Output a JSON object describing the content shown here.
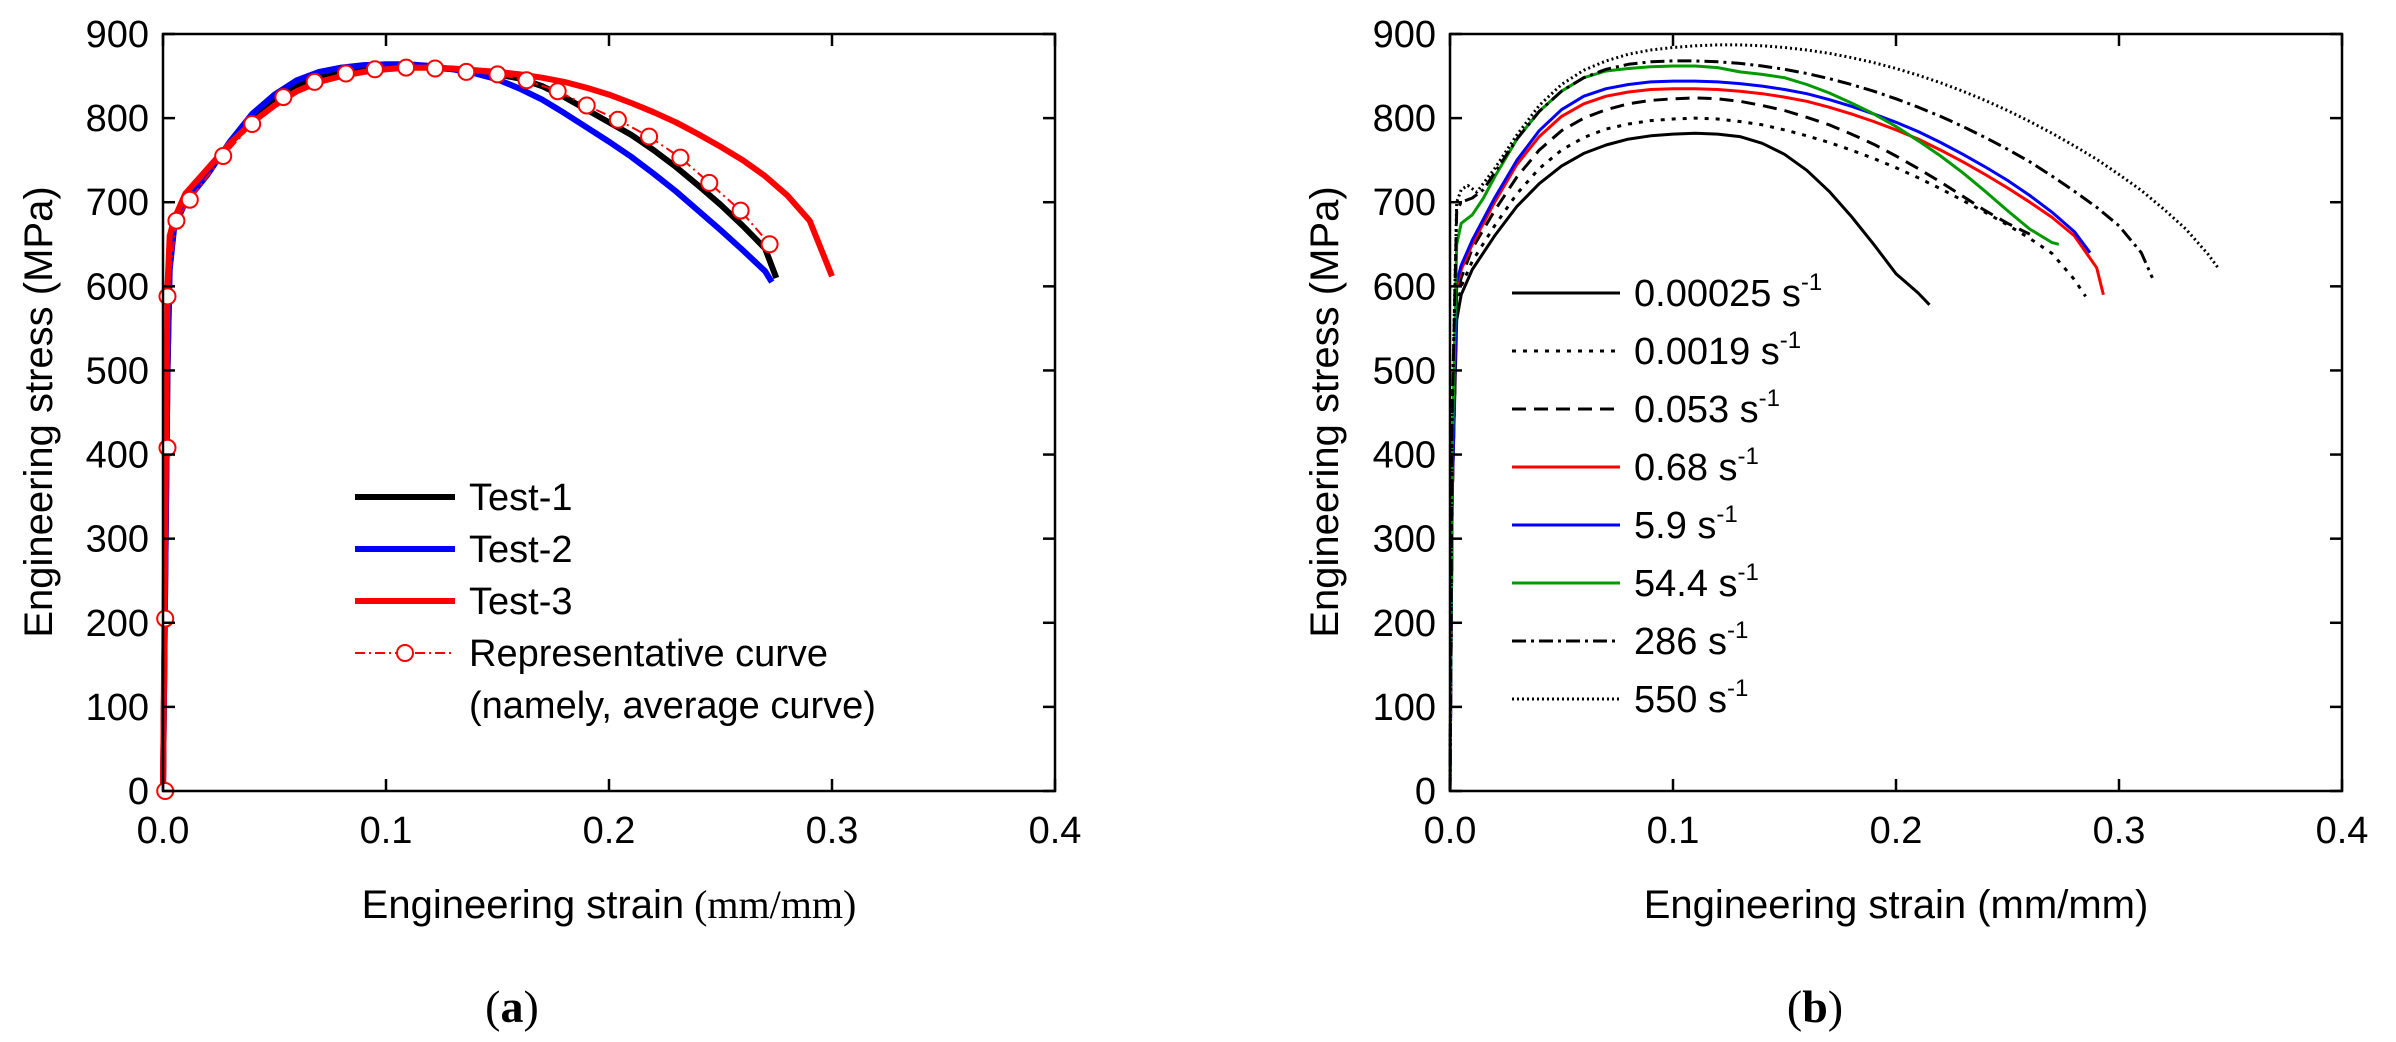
{
  "chart_data": [
    {
      "type": "line",
      "panel": "(a)",
      "caption": {
        "open": "(",
        "letter": "a",
        "close": ")"
      },
      "xlabel": "Engineering strain",
      "xunit": "(mm/mm)",
      "ylabel": "Engineering stress (MPa)",
      "xlim": [
        0.0,
        0.4
      ],
      "ylim": [
        0,
        900
      ],
      "xticks": [
        "0.0",
        "0.1",
        "0.2",
        "0.3",
        "0.4"
      ],
      "yticks": [
        "0",
        "100",
        "200",
        "300",
        "400",
        "500",
        "600",
        "700",
        "800",
        "900"
      ],
      "legend_position": "bottom-right",
      "series": [
        {
          "name": "Test-1",
          "color": "#000000",
          "style": "solid-thick",
          "x": [
            0,
            0.001,
            0.002,
            0.003,
            0.005,
            0.01,
            0.02,
            0.03,
            0.04,
            0.05,
            0.06,
            0.07,
            0.08,
            0.09,
            0.1,
            0.11,
            0.12,
            0.13,
            0.14,
            0.15,
            0.16,
            0.17,
            0.18,
            0.19,
            0.2,
            0.21,
            0.22,
            0.23,
            0.24,
            0.25,
            0.26,
            0.27,
            0.275
          ],
          "y": [
            0,
            250,
            500,
            630,
            680,
            705,
            735,
            770,
            800,
            820,
            838,
            848,
            853,
            857,
            859,
            860,
            860,
            858,
            855,
            852,
            847,
            838,
            825,
            810,
            795,
            780,
            762,
            742,
            720,
            697,
            672,
            645,
            610
          ]
        },
        {
          "name": "Test-2",
          "color": "#0000ff",
          "style": "solid-thick",
          "x": [
            0,
            0.001,
            0.002,
            0.003,
            0.005,
            0.01,
            0.02,
            0.03,
            0.04,
            0.05,
            0.06,
            0.07,
            0.08,
            0.09,
            0.1,
            0.11,
            0.12,
            0.13,
            0.14,
            0.15,
            0.16,
            0.17,
            0.18,
            0.19,
            0.2,
            0.21,
            0.22,
            0.23,
            0.24,
            0.25,
            0.26,
            0.27,
            0.273
          ],
          "y": [
            0,
            250,
            500,
            620,
            670,
            700,
            733,
            772,
            805,
            828,
            845,
            855,
            860,
            863,
            864,
            864,
            862,
            858,
            853,
            846,
            835,
            822,
            806,
            789,
            772,
            754,
            734,
            713,
            690,
            667,
            643,
            618,
            605
          ]
        },
        {
          "name": "Test-3",
          "color": "#ff0000",
          "style": "solid-thick",
          "x": [
            0,
            0.001,
            0.002,
            0.003,
            0.005,
            0.01,
            0.02,
            0.03,
            0.04,
            0.05,
            0.06,
            0.07,
            0.08,
            0.09,
            0.1,
            0.11,
            0.12,
            0.13,
            0.14,
            0.15,
            0.16,
            0.17,
            0.18,
            0.19,
            0.2,
            0.21,
            0.22,
            0.23,
            0.24,
            0.25,
            0.26,
            0.27,
            0.28,
            0.29,
            0.3
          ],
          "y": [
            0,
            300,
            600,
            660,
            680,
            710,
            740,
            770,
            795,
            815,
            832,
            843,
            850,
            855,
            858,
            860,
            860,
            859,
            857,
            855,
            852,
            848,
            843,
            836,
            828,
            818,
            807,
            795,
            781,
            766,
            750,
            731,
            708,
            678,
            612
          ]
        },
        {
          "name": "Representative curve",
          "name_line2": "(namely, average curve)",
          "color": "#ff0000",
          "style": "dashdot-circles",
          "x": [
            0.001,
            0.001,
            0.002,
            0.002,
            0.006,
            0.012,
            0.027,
            0.04,
            0.054,
            0.068,
            0.082,
            0.095,
            0.109,
            0.122,
            0.136,
            0.15,
            0.163,
            0.177,
            0.19,
            0.204,
            0.218,
            0.232,
            0.245,
            0.259,
            0.272
          ],
          "y": [
            0,
            205,
            408,
            588,
            678,
            703,
            755,
            793,
            825,
            843,
            853,
            858,
            860,
            859,
            855,
            852,
            845,
            832,
            815,
            798,
            778,
            753,
            723,
            690,
            650
          ]
        }
      ]
    },
    {
      "type": "line",
      "panel": "(b)",
      "caption": {
        "open": "(",
        "letter": "b",
        "close": ")"
      },
      "xlabel": "Engineering strain (mm/mm)",
      "ylabel": "Engineering stress (MPa)",
      "xlim": [
        0.0,
        0.4
      ],
      "ylim": [
        0,
        900
      ],
      "xticks": [
        "0.0",
        "0.1",
        "0.2",
        "0.3",
        "0.4"
      ],
      "yticks": [
        "0",
        "100",
        "200",
        "300",
        "400",
        "500",
        "600",
        "700",
        "800",
        "900"
      ],
      "legend_position": "bottom-left",
      "series": [
        {
          "name": "0.00025 s",
          "sup": "-1",
          "color": "#000000",
          "style": "solid",
          "x": [
            0,
            0.001,
            0.003,
            0.005,
            0.01,
            0.02,
            0.03,
            0.04,
            0.05,
            0.06,
            0.07,
            0.08,
            0.09,
            0.1,
            0.11,
            0.12,
            0.13,
            0.14,
            0.15,
            0.16,
            0.17,
            0.18,
            0.19,
            0.2,
            0.21,
            0.215
          ],
          "y": [
            0,
            350,
            560,
            590,
            620,
            660,
            695,
            722,
            743,
            758,
            768,
            775,
            779,
            781,
            782,
            781,
            778,
            770,
            757,
            738,
            713,
            683,
            650,
            615,
            592,
            578
          ]
        },
        {
          "name": "0.0019 s",
          "sup": "-1",
          "color": "#000000",
          "style": "dotted",
          "x": [
            0,
            0.001,
            0.003,
            0.005,
            0.01,
            0.02,
            0.03,
            0.04,
            0.05,
            0.06,
            0.07,
            0.08,
            0.09,
            0.1,
            0.11,
            0.12,
            0.13,
            0.14,
            0.15,
            0.16,
            0.17,
            0.18,
            0.19,
            0.2,
            0.21,
            0.22,
            0.23,
            0.24,
            0.25,
            0.26,
            0.27,
            0.28,
            0.285
          ],
          "y": [
            0,
            350,
            570,
            600,
            630,
            672,
            710,
            740,
            762,
            777,
            787,
            793,
            797,
            799,
            800,
            799,
            796,
            792,
            786,
            779,
            771,
            762,
            752,
            741,
            729,
            716,
            702,
            688,
            673,
            657,
            639,
            608,
            588
          ]
        },
        {
          "name": "0.053 s",
          "sup": "-1",
          "color": "#000000",
          "style": "dashed",
          "x": [
            0,
            0.001,
            0.003,
            0.005,
            0.01,
            0.02,
            0.03,
            0.04,
            0.05,
            0.06,
            0.07,
            0.08,
            0.09,
            0.1,
            0.11,
            0.12,
            0.13,
            0.14,
            0.15,
            0.16,
            0.17,
            0.18,
            0.19,
            0.2,
            0.21,
            0.22,
            0.23,
            0.24,
            0.25,
            0.26
          ],
          "y": [
            0,
            350,
            590,
            610,
            645,
            690,
            730,
            762,
            785,
            800,
            810,
            817,
            821,
            823,
            824,
            823,
            820,
            815,
            809,
            801,
            792,
            781,
            769,
            755,
            740,
            724,
            707,
            690,
            675,
            662
          ]
        },
        {
          "name": "0.68 s",
          "sup": "-1",
          "color": "#ff0000",
          "style": "solid",
          "x": [
            0,
            0.001,
            0.003,
            0.005,
            0.01,
            0.02,
            0.03,
            0.04,
            0.05,
            0.06,
            0.07,
            0.08,
            0.09,
            0.1,
            0.11,
            0.12,
            0.13,
            0.14,
            0.15,
            0.16,
            0.17,
            0.18,
            0.19,
            0.2,
            0.21,
            0.22,
            0.23,
            0.24,
            0.25,
            0.26,
            0.27,
            0.28,
            0.29,
            0.293
          ],
          "y": [
            0,
            350,
            600,
            620,
            650,
            700,
            745,
            778,
            802,
            817,
            826,
            831,
            834,
            835,
            835,
            834,
            832,
            829,
            825,
            820,
            813,
            805,
            796,
            786,
            775,
            762,
            748,
            733,
            717,
            700,
            682,
            660,
            622,
            590
          ]
        },
        {
          "name": "5.9 s",
          "sup": "-1",
          "color": "#0000ff",
          "style": "solid",
          "x": [
            0,
            0.001,
            0.003,
            0.005,
            0.01,
            0.02,
            0.03,
            0.04,
            0.05,
            0.06,
            0.07,
            0.08,
            0.09,
            0.1,
            0.11,
            0.12,
            0.13,
            0.14,
            0.15,
            0.16,
            0.17,
            0.18,
            0.19,
            0.2,
            0.21,
            0.22,
            0.23,
            0.24,
            0.25,
            0.26,
            0.27,
            0.28,
            0.287
          ],
          "y": [
            0,
            350,
            605,
            625,
            655,
            705,
            750,
            785,
            810,
            826,
            835,
            840,
            843,
            844,
            844,
            843,
            841,
            838,
            834,
            829,
            822,
            814,
            805,
            795,
            784,
            771,
            757,
            742,
            726,
            708,
            688,
            665,
            640
          ]
        },
        {
          "name": "54.4 s",
          "sup": "-1",
          "color": "#009900",
          "style": "solid",
          "x": [
            0,
            0.001,
            0.003,
            0.005,
            0.01,
            0.015,
            0.02,
            0.03,
            0.04,
            0.05,
            0.06,
            0.07,
            0.08,
            0.09,
            0.1,
            0.11,
            0.12,
            0.13,
            0.14,
            0.15,
            0.16,
            0.17,
            0.18,
            0.19,
            0.2,
            0.21,
            0.22,
            0.23,
            0.24,
            0.25,
            0.26,
            0.27,
            0.273
          ],
          "y": [
            0,
            400,
            650,
            675,
            685,
            705,
            730,
            775,
            808,
            832,
            848,
            856,
            859,
            861,
            862,
            862,
            860,
            855,
            852,
            848,
            840,
            830,
            818,
            805,
            790,
            773,
            755,
            735,
            713,
            690,
            668,
            652,
            650
          ]
        },
        {
          "name": "286 s",
          "sup": "-1",
          "color": "#000000",
          "style": "dashdot",
          "x": [
            0,
            0.001,
            0.003,
            0.005,
            0.01,
            0.015,
            0.02,
            0.03,
            0.04,
            0.05,
            0.06,
            0.07,
            0.08,
            0.09,
            0.1,
            0.11,
            0.12,
            0.13,
            0.14,
            0.15,
            0.16,
            0.17,
            0.18,
            0.19,
            0.2,
            0.21,
            0.22,
            0.23,
            0.24,
            0.25,
            0.26,
            0.27,
            0.28,
            0.29,
            0.3,
            0.31,
            0.315
          ],
          "y": [
            0,
            450,
            690,
            700,
            705,
            715,
            735,
            775,
            808,
            832,
            848,
            858,
            864,
            867,
            868,
            868,
            867,
            865,
            862,
            858,
            853,
            847,
            840,
            832,
            823,
            813,
            802,
            790,
            777,
            763,
            748,
            731,
            713,
            694,
            672,
            640,
            610
          ]
        },
        {
          "name": "550 s",
          "sup": "-1",
          "color": "#000000",
          "style": "densedot",
          "x": [
            0,
            0.001,
            0.003,
            0.005,
            0.008,
            0.012,
            0.02,
            0.03,
            0.04,
            0.05,
            0.06,
            0.07,
            0.08,
            0.09,
            0.1,
            0.11,
            0.12,
            0.13,
            0.14,
            0.15,
            0.16,
            0.17,
            0.18,
            0.19,
            0.2,
            0.21,
            0.22,
            0.23,
            0.24,
            0.25,
            0.26,
            0.27,
            0.28,
            0.29,
            0.3,
            0.31,
            0.32,
            0.33,
            0.34,
            0.345
          ],
          "y": [
            0,
            450,
            700,
            715,
            720,
            712,
            740,
            780,
            815,
            840,
            857,
            868,
            876,
            881,
            884,
            886,
            887,
            887,
            886,
            884,
            881,
            877,
            872,
            866,
            859,
            851,
            842,
            832,
            821,
            809,
            796,
            782,
            767,
            751,
            733,
            714,
            692,
            668,
            638,
            620
          ]
        }
      ]
    }
  ]
}
